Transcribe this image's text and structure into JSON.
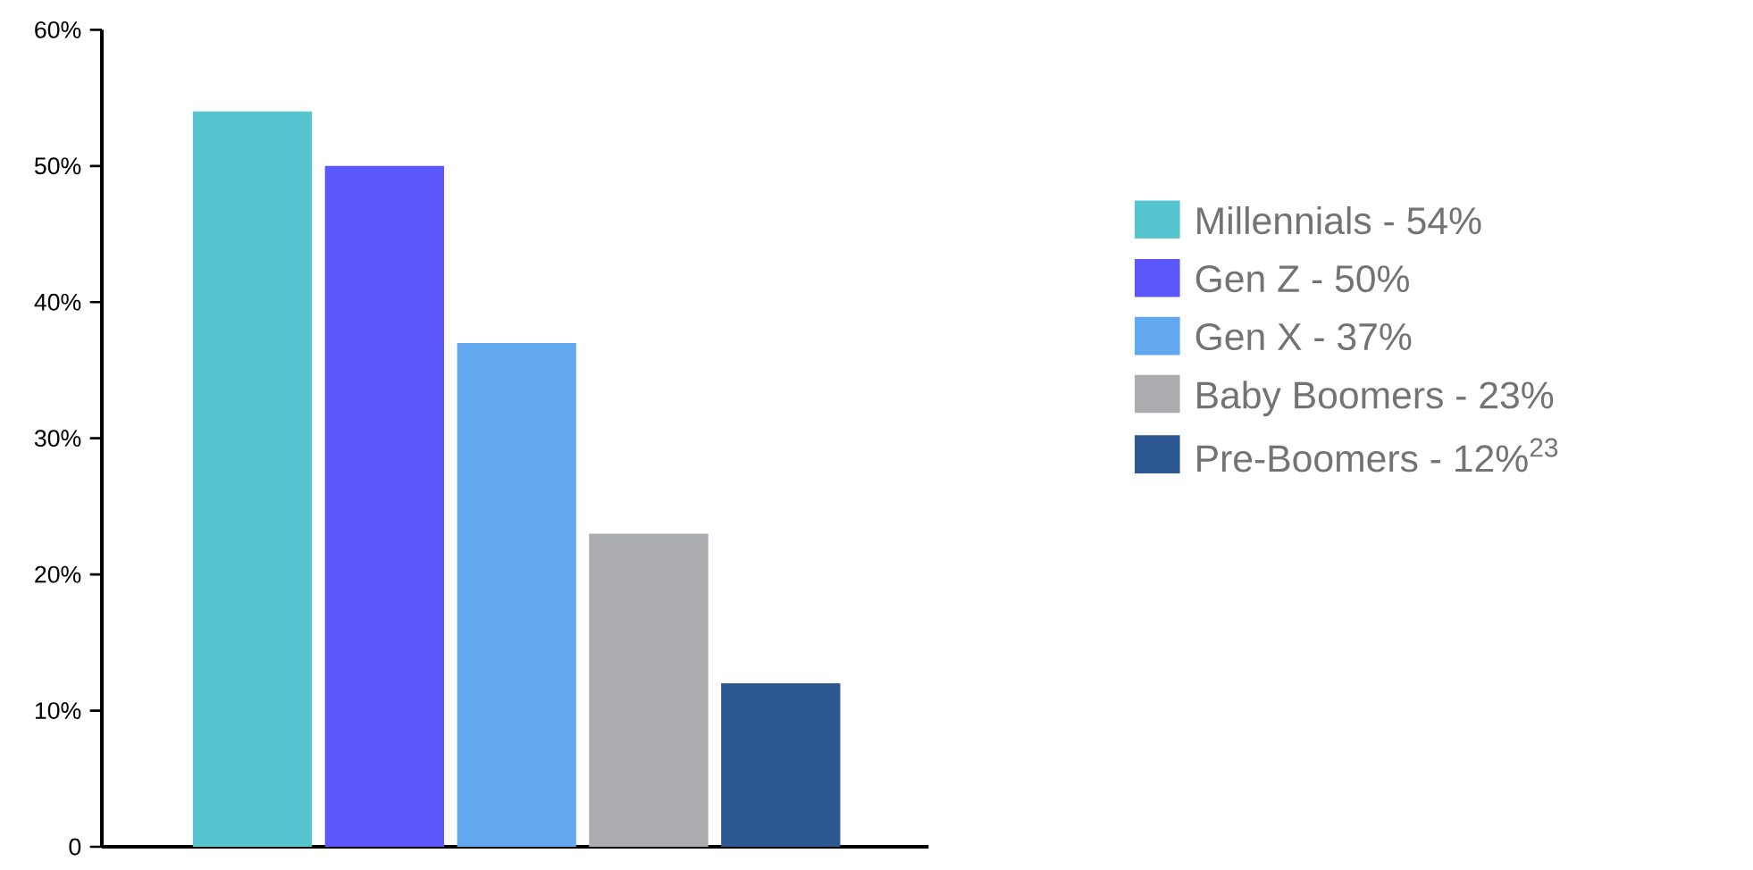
{
  "chart_data": {
    "type": "bar",
    "categories": [
      null,
      null,
      null,
      null,
      null
    ],
    "series": [
      {
        "name": "Millennials - 54%",
        "color": "#56c5d0",
        "values": [
          54,
          null,
          null,
          null,
          null
        ]
      },
      {
        "name": "Gen Z - 50%",
        "color": "#5b57fb",
        "values": [
          null,
          50,
          null,
          null,
          null
        ]
      },
      {
        "name": "Gen X - 37%",
        "color": "#62a8ee",
        "values": [
          null,
          null,
          37,
          null,
          null
        ]
      },
      {
        "name": "Baby Boomers - 23%",
        "color": "#abacb0",
        "values": [
          null,
          null,
          null,
          23,
          null
        ]
      },
      {
        "name": "Pre-Boomers - 12%$^{23}$",
        "color": "#2e5891",
        "values": [
          null,
          null,
          null,
          null,
          12
        ]
      }
    ],
    "ylim": [
      0,
      60
    ],
    "yticks": [
      {
        "value": 0,
        "label": "0"
      },
      {
        "value": 10,
        "label": "10%"
      },
      {
        "value": 20,
        "label": "20%"
      },
      {
        "value": 30,
        "label": "30%"
      },
      {
        "value": 40,
        "label": "40%"
      },
      {
        "value": 50,
        "label": "50%"
      },
      {
        "value": 60,
        "label": "60%"
      }
    ],
    "grid": false,
    "legend": "right"
  }
}
